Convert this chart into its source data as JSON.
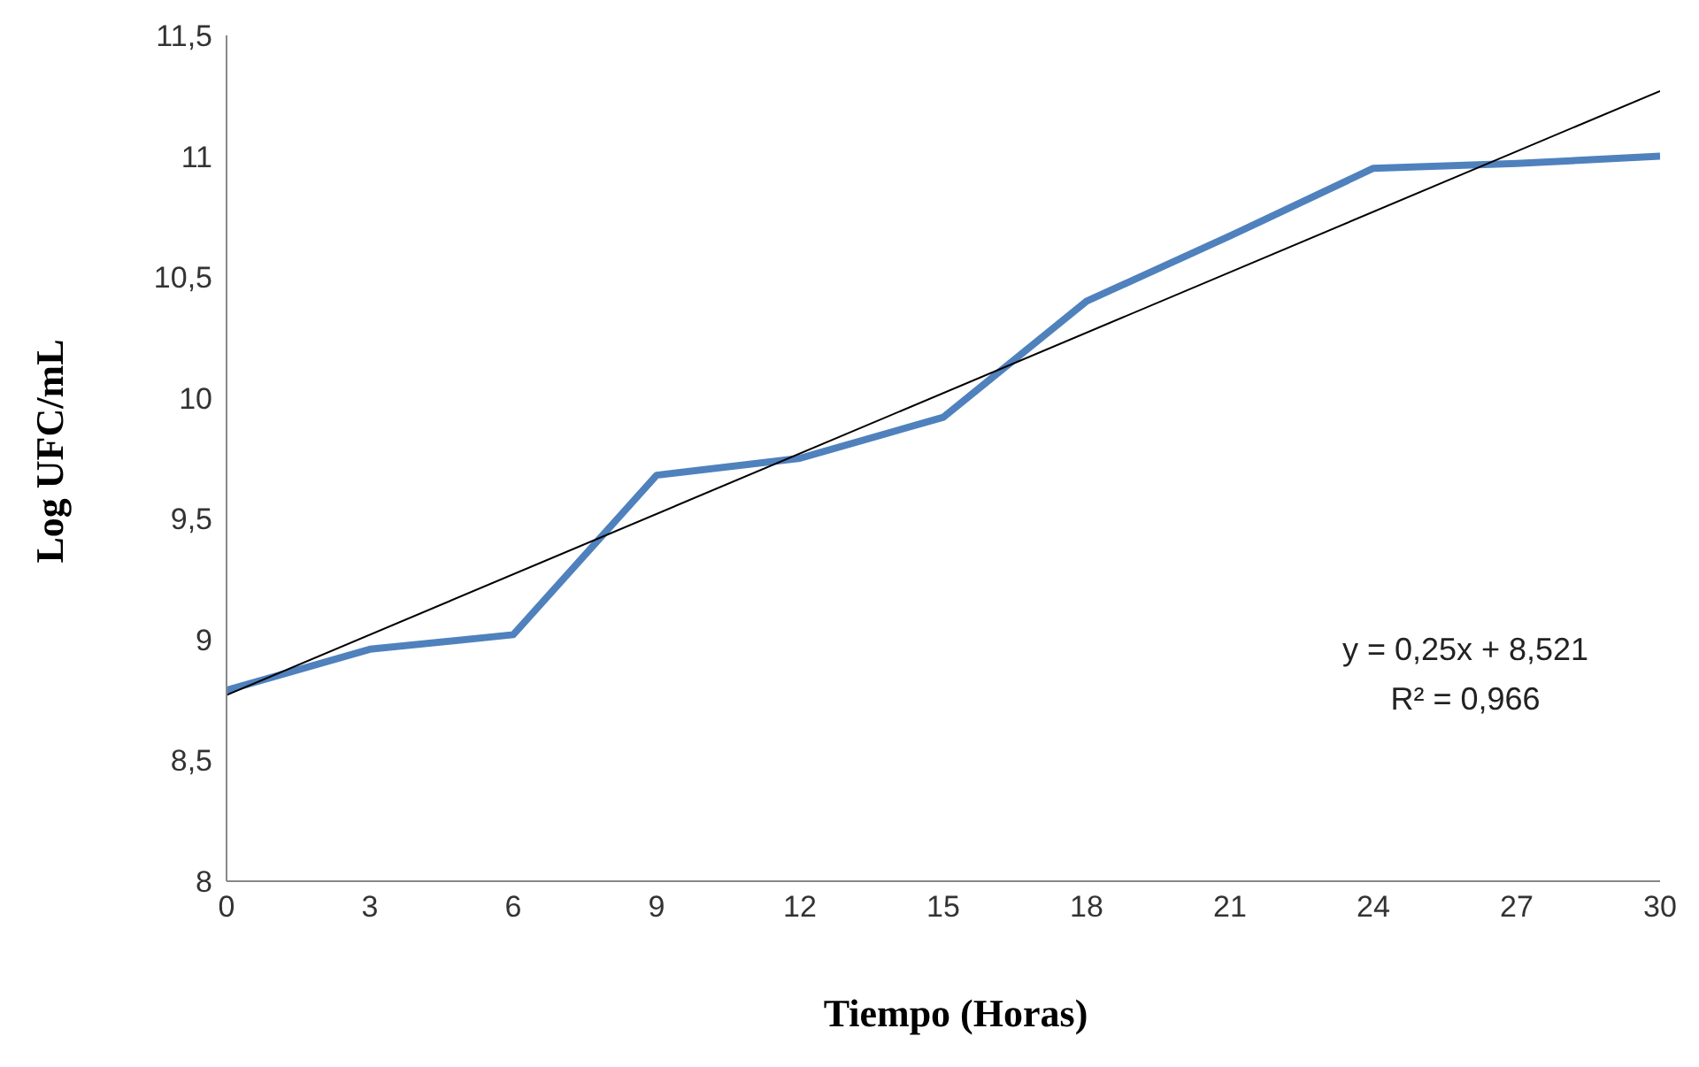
{
  "chart_data": {
    "type": "line",
    "xlabel": "Tiempo (Horas)",
    "ylabel": "Log UFC/mL",
    "x": [
      0,
      3,
      6,
      9,
      12,
      15,
      18,
      21,
      24,
      27,
      30
    ],
    "series": [
      {
        "color": "#4f81bd",
        "values": [
          8.79,
          8.96,
          9.02,
          9.68,
          9.75,
          9.92,
          10.4,
          10.67,
          10.95,
          10.97,
          11.0
        ]
      },
      {
        "type": "line",
        "color": "#000000",
        "x": [
          0,
          30
        ],
        "values": [
          8.77,
          11.27
        ]
      }
    ],
    "xlim": [
      0,
      30
    ],
    "xticks": [
      0,
      3,
      6,
      9,
      12,
      15,
      18,
      21,
      24,
      27,
      30
    ],
    "ylim": [
      8,
      11.5
    ],
    "yticks": [
      8,
      {
        "value": 8.5,
        "label": "8,5"
      },
      9,
      {
        "value": 9.5,
        "label": "9,5"
      },
      10,
      {
        "value": 10.5,
        "label": "10,5"
      },
      11,
      {
        "value": 11.5,
        "label": "11,5"
      }
    ],
    "marker": "none",
    "annotations": [
      "y = 0,25x + 8,521",
      "R² = 0,966"
    ]
  }
}
